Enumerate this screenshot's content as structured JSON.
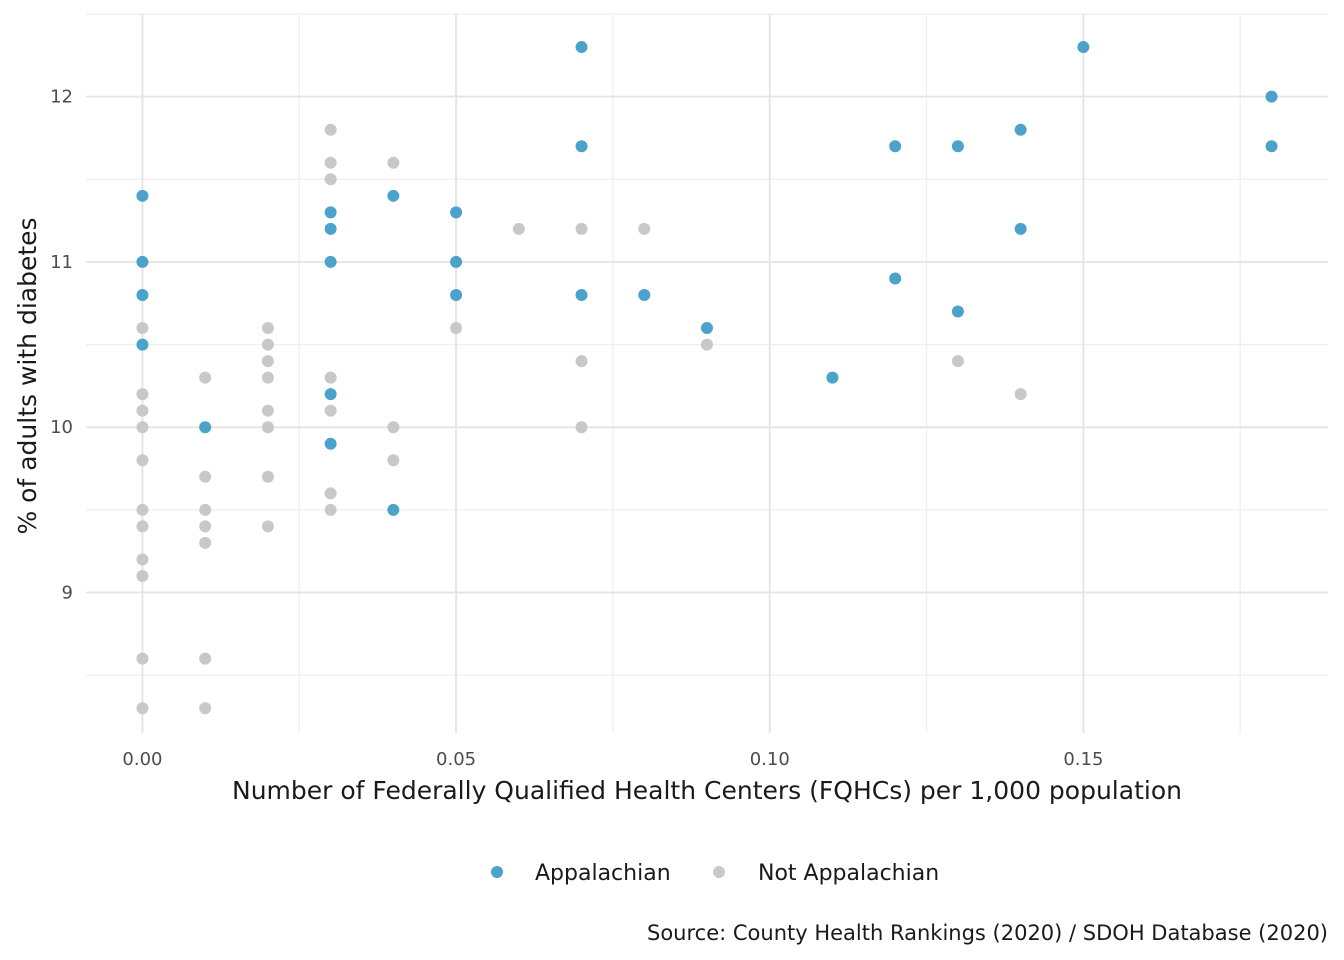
{
  "chart_data": {
    "type": "scatter",
    "title": "",
    "xlabel": "Number of Federally Qualified Health Centers (FQHCs) per 1,000 population",
    "ylabel": "% of adults with diabetes",
    "caption": "Source: County Health Rankings (2020) / SDOH Database (2020)",
    "xlim": [
      -0.009,
      0.189
    ],
    "ylim": [
      8.15,
      12.5
    ],
    "x_ticks": [
      0.0,
      0.05,
      0.1,
      0.15
    ],
    "x_tick_labels": [
      "0.00",
      "0.05",
      "0.10",
      "0.15"
    ],
    "y_ticks": [
      9,
      10,
      11,
      12
    ],
    "y_tick_labels": [
      "9",
      "10",
      "11",
      "12"
    ],
    "grid": true,
    "legend_position": "bottom",
    "series": [
      {
        "name": "Appalachian",
        "color": "#4ba3cc",
        "points": [
          [
            0.0,
            11.4
          ],
          [
            0.0,
            11.0
          ],
          [
            0.0,
            10.8
          ],
          [
            0.0,
            10.5
          ],
          [
            0.01,
            10.0
          ],
          [
            0.03,
            11.3
          ],
          [
            0.03,
            11.2
          ],
          [
            0.03,
            11.0
          ],
          [
            0.03,
            10.2
          ],
          [
            0.03,
            9.9
          ],
          [
            0.04,
            11.4
          ],
          [
            0.04,
            9.5
          ],
          [
            0.05,
            11.3
          ],
          [
            0.05,
            11.0
          ],
          [
            0.05,
            10.8
          ],
          [
            0.07,
            12.3
          ],
          [
            0.07,
            11.7
          ],
          [
            0.07,
            10.8
          ],
          [
            0.08,
            10.8
          ],
          [
            0.09,
            10.6
          ],
          [
            0.11,
            10.3
          ],
          [
            0.12,
            11.7
          ],
          [
            0.12,
            10.9
          ],
          [
            0.13,
            11.7
          ],
          [
            0.13,
            10.7
          ],
          [
            0.14,
            11.8
          ],
          [
            0.14,
            11.2
          ],
          [
            0.15,
            12.3
          ],
          [
            0.18,
            12.0
          ],
          [
            0.18,
            11.7
          ]
        ]
      },
      {
        "name": "Not Appalachian",
        "color": "#c8c8c8",
        "points": [
          [
            0.0,
            10.6
          ],
          [
            0.0,
            10.2
          ],
          [
            0.0,
            10.1
          ],
          [
            0.0,
            10.0
          ],
          [
            0.0,
            9.8
          ],
          [
            0.0,
            9.5
          ],
          [
            0.0,
            9.4
          ],
          [
            0.0,
            9.2
          ],
          [
            0.0,
            9.1
          ],
          [
            0.0,
            8.6
          ],
          [
            0.0,
            8.3
          ],
          [
            0.01,
            10.3
          ],
          [
            0.01,
            9.7
          ],
          [
            0.01,
            9.5
          ],
          [
            0.01,
            9.4
          ],
          [
            0.01,
            9.3
          ],
          [
            0.01,
            8.6
          ],
          [
            0.01,
            8.3
          ],
          [
            0.02,
            10.6
          ],
          [
            0.02,
            10.5
          ],
          [
            0.02,
            10.4
          ],
          [
            0.02,
            10.3
          ],
          [
            0.02,
            10.1
          ],
          [
            0.02,
            10.0
          ],
          [
            0.02,
            9.7
          ],
          [
            0.02,
            9.4
          ],
          [
            0.03,
            11.8
          ],
          [
            0.03,
            11.6
          ],
          [
            0.03,
            11.5
          ],
          [
            0.03,
            10.3
          ],
          [
            0.03,
            10.1
          ],
          [
            0.03,
            9.6
          ],
          [
            0.03,
            9.5
          ],
          [
            0.04,
            11.6
          ],
          [
            0.04,
            10.0
          ],
          [
            0.04,
            9.8
          ],
          [
            0.05,
            10.6
          ],
          [
            0.06,
            11.2
          ],
          [
            0.07,
            11.2
          ],
          [
            0.07,
            10.4
          ],
          [
            0.07,
            10.0
          ],
          [
            0.08,
            11.2
          ],
          [
            0.09,
            10.5
          ],
          [
            0.13,
            10.4
          ],
          [
            0.14,
            10.2
          ]
        ]
      }
    ]
  }
}
